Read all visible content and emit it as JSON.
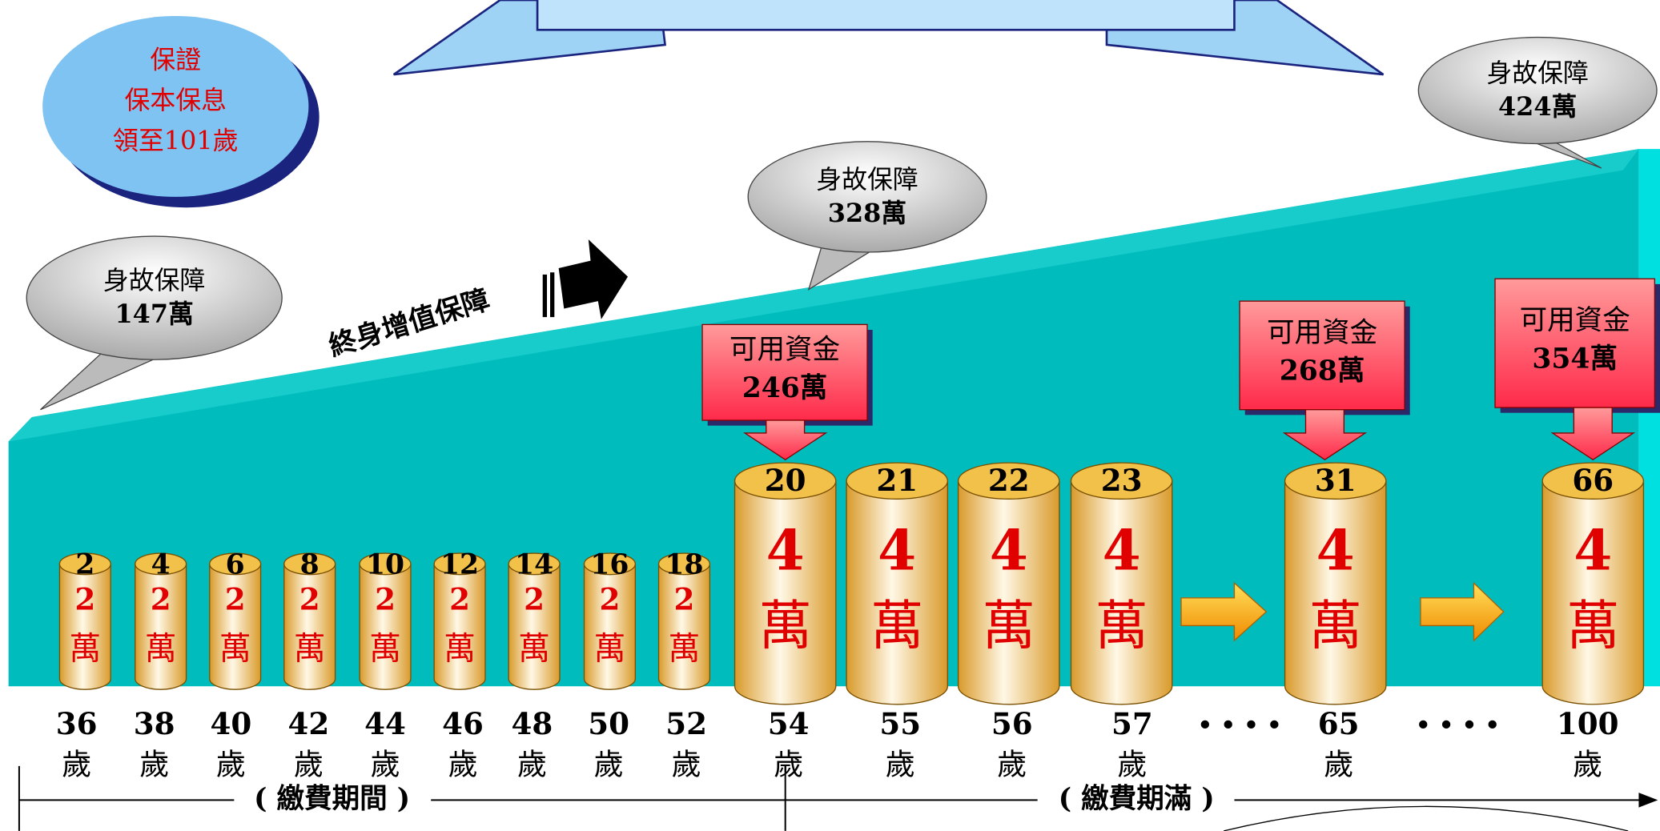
{
  "guarantee_bubble": {
    "lines": [
      "保證",
      "保本保息",
      "領至101歲"
    ]
  },
  "death_benefit_callouts": [
    {
      "label": "身故保障",
      "amount": "147萬"
    },
    {
      "label": "身故保障",
      "amount": "328萬"
    },
    {
      "label": "身故保障",
      "amount": "424萬"
    }
  ],
  "fund_callouts": [
    {
      "label": "可用資金",
      "amount": "246萬"
    },
    {
      "label": "可用資金",
      "amount": "268萬"
    },
    {
      "label": "可用資金",
      "amount": "354萬"
    }
  ],
  "growth_label": "終身增值保障",
  "cylinders": [
    {
      "count": "2",
      "amount": "2",
      "unit": "萬"
    },
    {
      "count": "4",
      "amount": "2",
      "unit": "萬"
    },
    {
      "count": "6",
      "amount": "2",
      "unit": "萬"
    },
    {
      "count": "8",
      "amount": "2",
      "unit": "萬"
    },
    {
      "count": "10",
      "amount": "2",
      "unit": "萬"
    },
    {
      "count": "12",
      "amount": "2",
      "unit": "萬"
    },
    {
      "count": "14",
      "amount": "2",
      "unit": "萬"
    },
    {
      "count": "16",
      "amount": "2",
      "unit": "萬"
    },
    {
      "count": "18",
      "amount": "2",
      "unit": "萬"
    },
    {
      "count": "20",
      "amount": "4",
      "unit": "萬"
    },
    {
      "count": "21",
      "amount": "4",
      "unit": "萬"
    },
    {
      "count": "22",
      "amount": "4",
      "unit": "萬"
    },
    {
      "count": "23",
      "amount": "4",
      "unit": "萬"
    },
    {
      "count": "31",
      "amount": "4",
      "unit": "萬"
    },
    {
      "count": "66",
      "amount": "4",
      "unit": "萬"
    }
  ],
  "ages": [
    {
      "age": "36",
      "unit": "歲"
    },
    {
      "age": "38",
      "unit": "歲"
    },
    {
      "age": "40",
      "unit": "歲"
    },
    {
      "age": "42",
      "unit": "歲"
    },
    {
      "age": "44",
      "unit": "歲"
    },
    {
      "age": "46",
      "unit": "歲"
    },
    {
      "age": "48",
      "unit": "歲"
    },
    {
      "age": "50",
      "unit": "歲"
    },
    {
      "age": "52",
      "unit": "歲"
    },
    {
      "age": "54",
      "unit": "歲"
    },
    {
      "age": "55",
      "unit": "歲"
    },
    {
      "age": "56",
      "unit": "歲"
    },
    {
      "age": "57",
      "unit": "歲"
    },
    {
      "age": "65",
      "unit": "歲"
    },
    {
      "age": "100",
      "unit": "歲"
    }
  ],
  "separators": [
    "• • • •",
    "• • • •"
  ],
  "periods": [
    "( 繳費期間 )",
    "( 繳費期滿 )"
  ]
}
